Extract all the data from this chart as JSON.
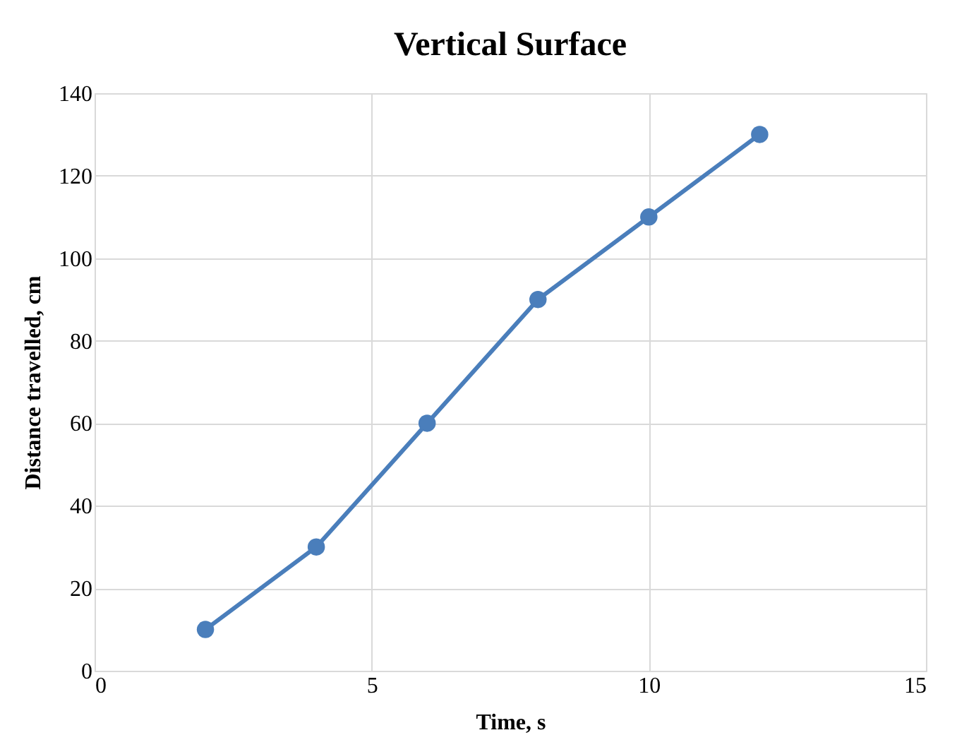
{
  "chart_data": {
    "type": "line",
    "title": "Vertical Surface",
    "xlabel": "Time, s",
    "ylabel": "Distance travelled, cm",
    "x": [
      2,
      4,
      6,
      8,
      10,
      12
    ],
    "series": [
      {
        "color": "#4a7ebb",
        "values": [
          10,
          30,
          60,
          90,
          110,
          130
        ]
      }
    ],
    "xlim": [
      0,
      15
    ],
    "xticks": [
      0,
      5,
      10,
      15
    ],
    "ylim": [
      0,
      140
    ],
    "yticks": [
      0,
      20,
      40,
      60,
      80,
      100,
      120,
      140
    ],
    "grid": true,
    "marker": "circle",
    "line_style": "solid"
  }
}
